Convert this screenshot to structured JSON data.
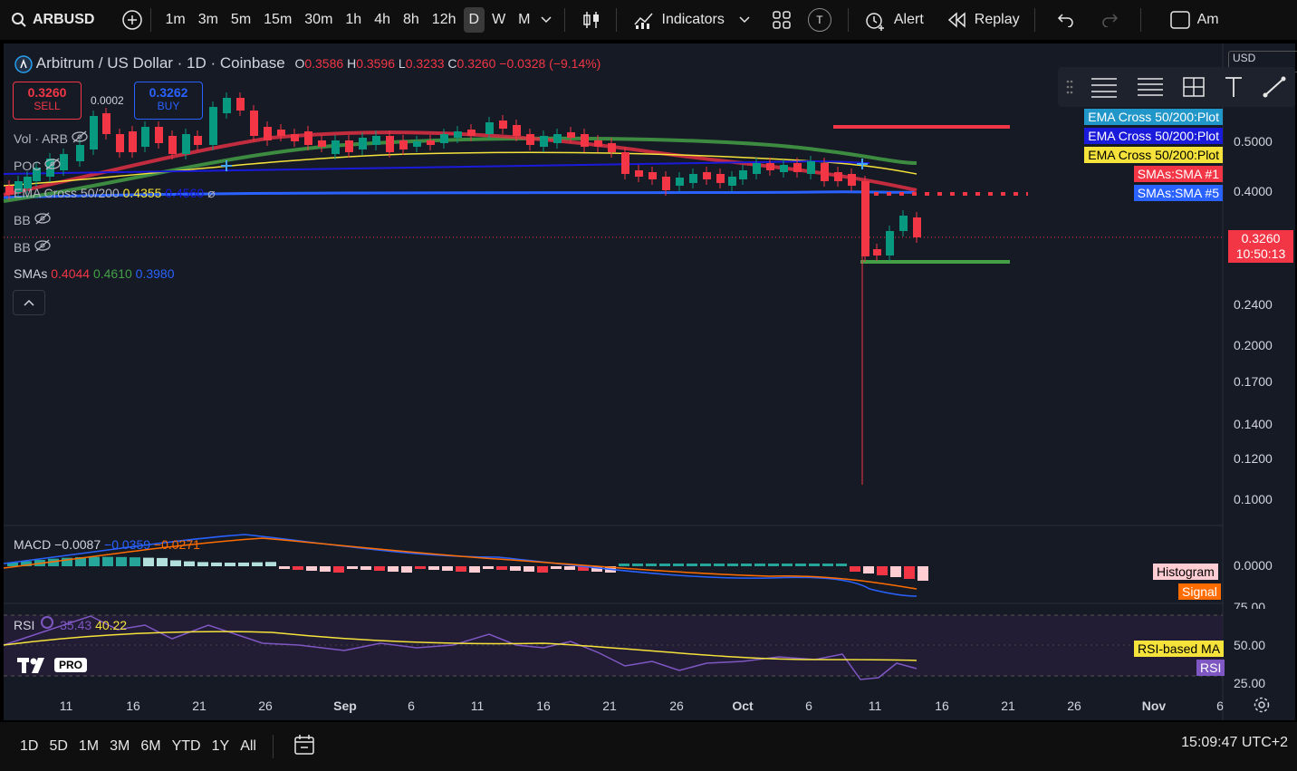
{
  "toolbar": {
    "symbol": "ARBUSD",
    "timeframes": [
      "1m",
      "3m",
      "5m",
      "15m",
      "30m",
      "1h",
      "4h",
      "8h",
      "12h",
      "D",
      "W",
      "M"
    ],
    "active_timeframe": "D",
    "indicators_label": "Indicators",
    "t_badge": "T",
    "alert_label": "Alert",
    "replay_label": "Replay",
    "cut_label": "Am"
  },
  "header": {
    "pair": "Arbitrum / US Dollar · 1D · Coinbase",
    "o_label": "O",
    "o_val": "0.3586",
    "h_label": "H",
    "h_val": "0.3596",
    "l_label": "L",
    "l_val": "0.3233",
    "c_label": "C",
    "c_val": "0.3260",
    "change": "−0.0328 (−9.14%)"
  },
  "trade": {
    "sell_price": "0.3260",
    "sell_label": "SELL",
    "spread": "0.0002",
    "buy_price": "0.3262",
    "buy_label": "BUY"
  },
  "legends": {
    "vol": "Vol · ARB",
    "poc": "POC",
    "ema_name": "EMA Cross 50/200",
    "ema_val1": "0.4355",
    "ema_val2": "0.4560",
    "bb1": "BB",
    "bb2": "BB",
    "smas_name": "SMAs",
    "sma1": "0.4044",
    "sma2": "0.4610",
    "sma3": "0.3980"
  },
  "currency": "USD",
  "price_tags": [
    {
      "label": "EMA Cross 50/200:Plot",
      "bg": "#2196c8",
      "fg": "#ffffff"
    },
    {
      "label": "EMA Cross 50/200:Plot",
      "bg": "#1a1adb",
      "fg": "#ffffff"
    },
    {
      "label": "EMA Cross 50/200:Plot",
      "bg": "#f5e33b",
      "fg": "#000000"
    },
    {
      "label": "SMAs:SMA #1",
      "bg": "#f23645",
      "fg": "#ffffff"
    },
    {
      "label": "SMAs:SMA #5",
      "bg": "#2962ff",
      "fg": "#ffffff"
    }
  ],
  "current_price": {
    "price": "0.3260",
    "countdown": "10:50:13"
  },
  "price_axis": [
    "0.5000",
    "0.4000",
    "0.2400",
    "0.2000",
    "0.1700",
    "0.1400",
    "0.1200",
    "0.1000"
  ],
  "x_axis": [
    "11",
    "16",
    "21",
    "26",
    "Sep",
    "6",
    "11",
    "16",
    "21",
    "26",
    "Oct",
    "6",
    "11",
    "16",
    "21",
    "26",
    "Nov",
    "6"
  ],
  "macd": {
    "name": "MACD",
    "v1": "−0.0087",
    "v2": "−0.0359",
    "v3": "−0.0271",
    "zero": "0.0000",
    "histogram_label": "Histogram",
    "signal_label": "Signal",
    "axis_top": "75.00"
  },
  "rsi": {
    "name": "RSI",
    "v1": "35.43",
    "v2": "40.22",
    "axis": [
      "50.00",
      "25.00"
    ],
    "ma_label": "RSI-based MA",
    "rsi_label": "RSI"
  },
  "logo_badge": "PRO",
  "bottom": {
    "ranges": [
      "1D",
      "5D",
      "1M",
      "3M",
      "6M",
      "YTD",
      "1Y",
      "All"
    ],
    "time": "15:09:47 UTC+2"
  },
  "colors": {
    "up": "#089981",
    "down": "#f23645",
    "bg": "#161a25",
    "sma_red": "#e03044",
    "sma_green": "#43a047",
    "sma_blue": "#2962ff"
  }
}
